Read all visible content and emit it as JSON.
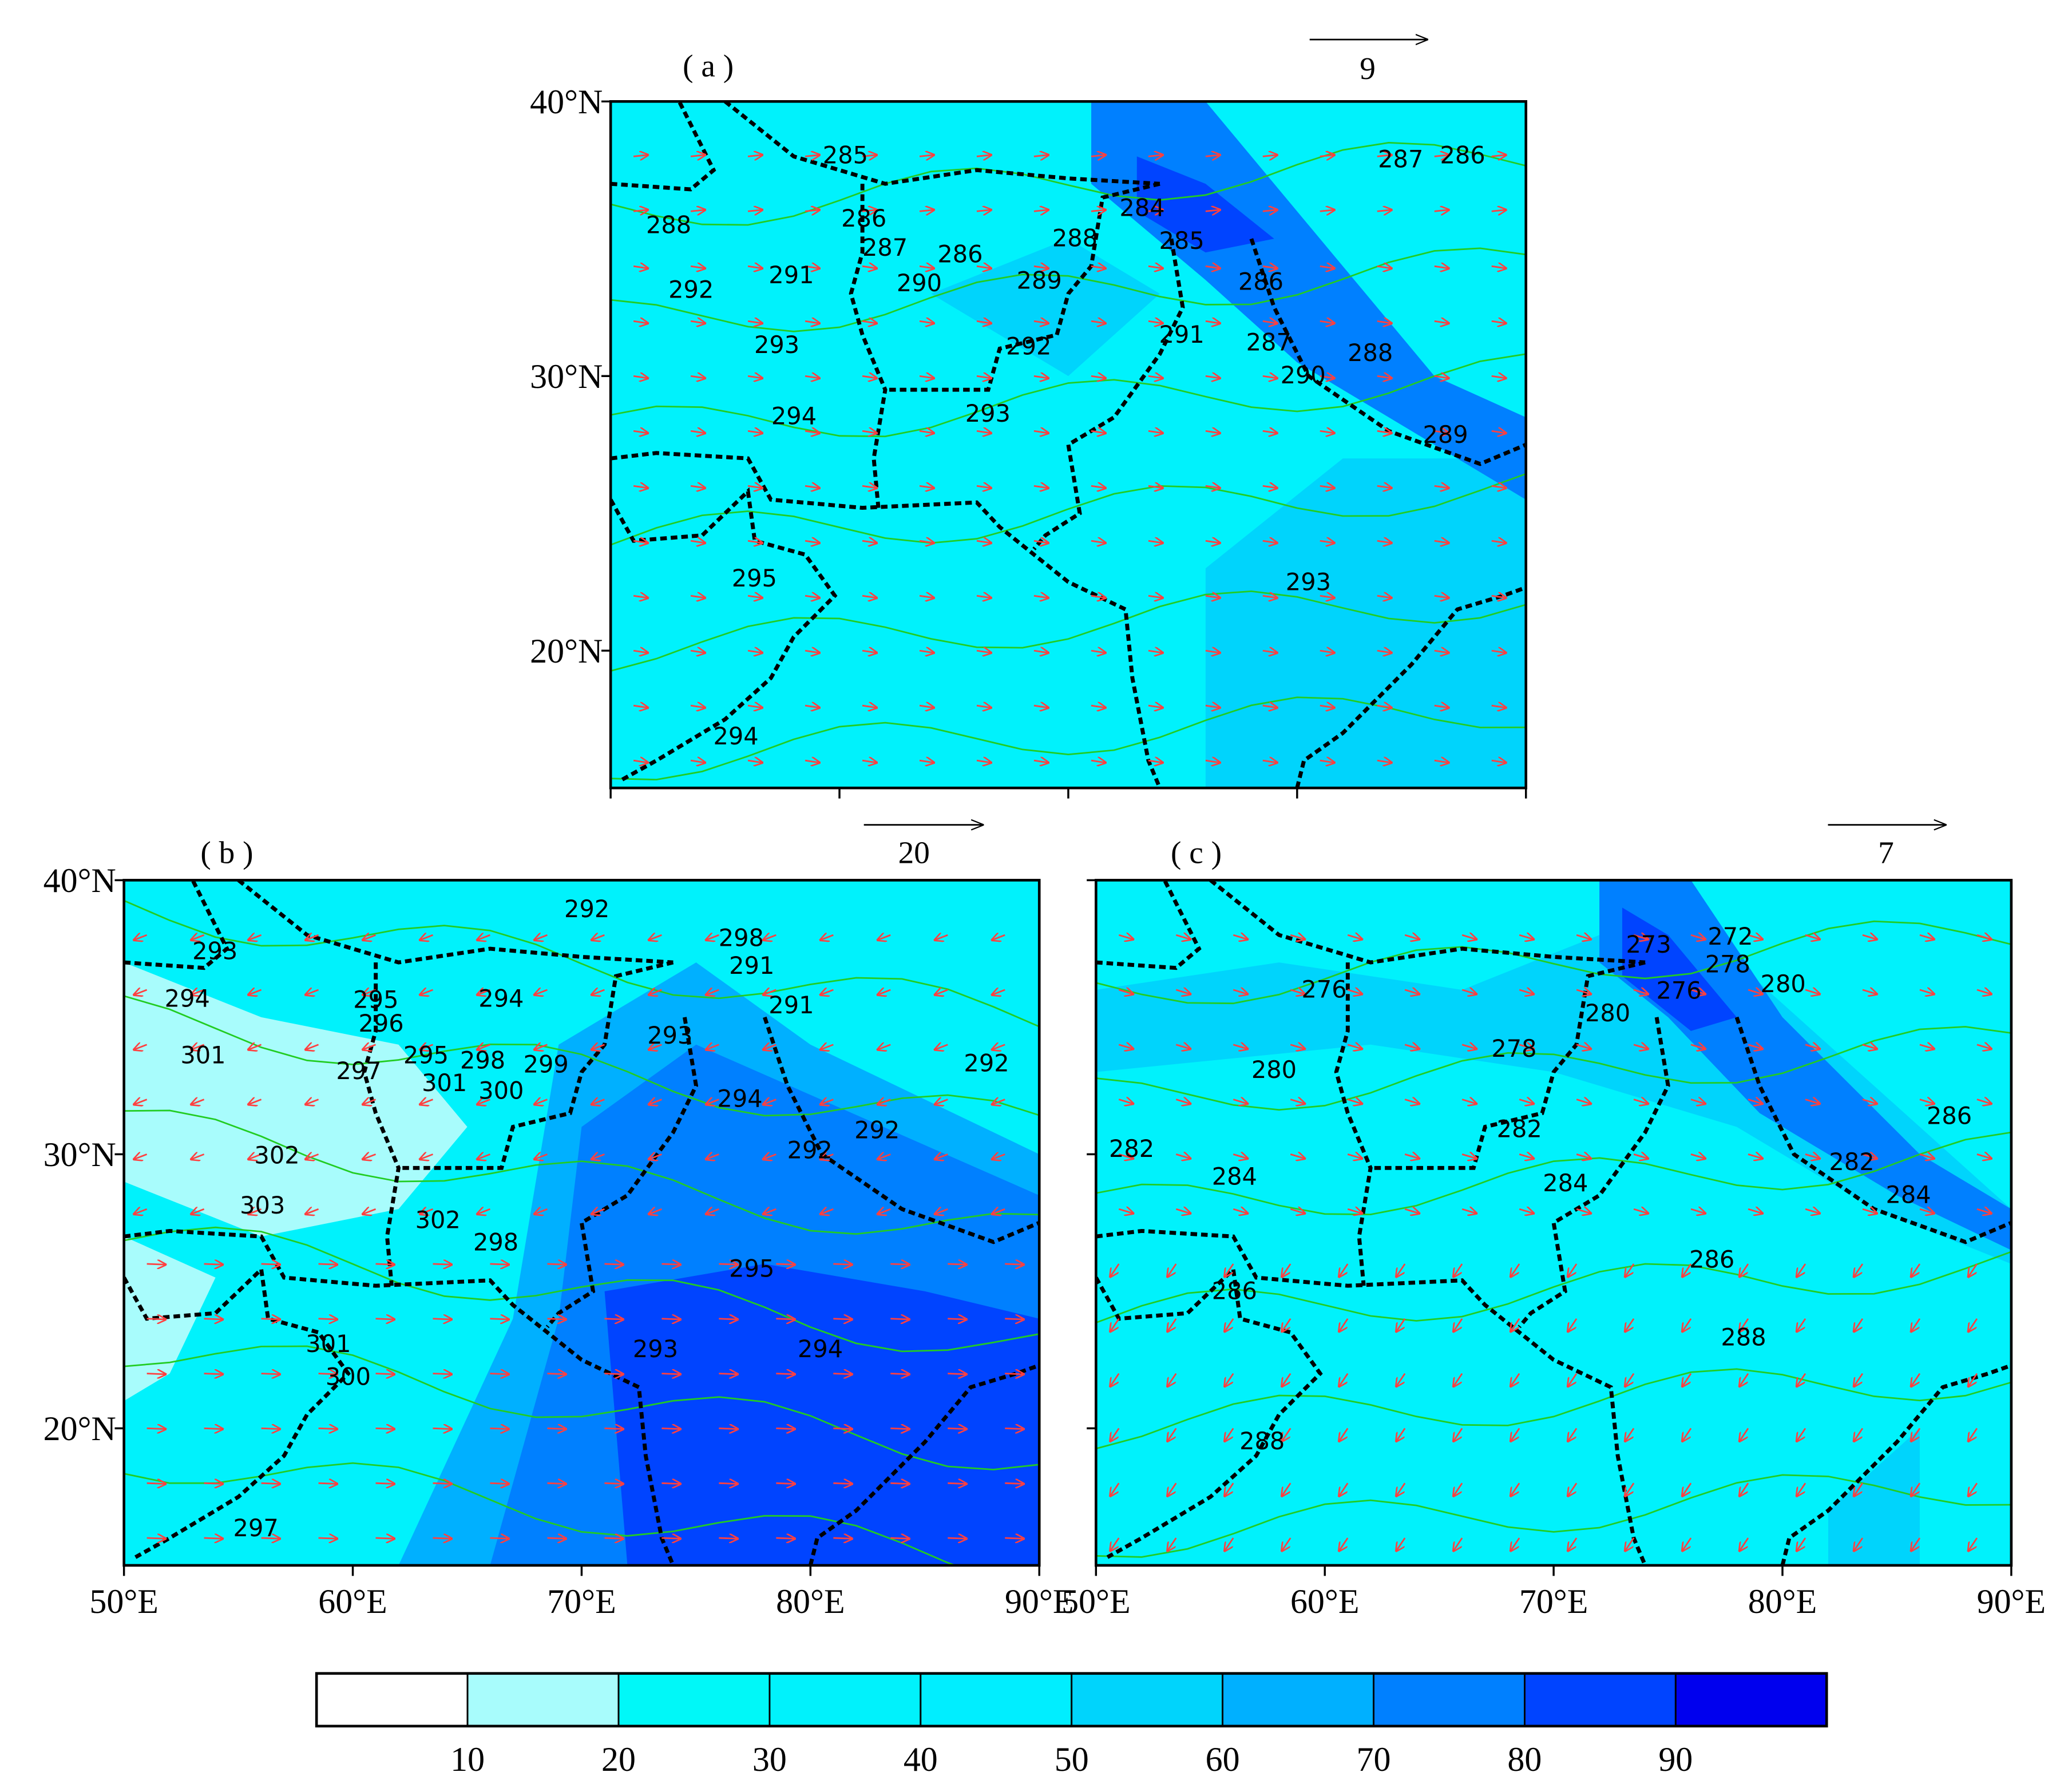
{
  "figure": {
    "panels": [
      {
        "label": "( a )",
        "reference_vector": 9,
        "xlim": [
          50,
          90
        ],
        "ylim": [
          15,
          40
        ],
        "xticks": [
          50,
          60,
          70,
          80,
          90
        ],
        "yticks": [
          {
            "value": 40,
            "label": "40°N"
          },
          {
            "value": 30,
            "label": "30°N"
          },
          {
            "value": 20,
            "label": "20°N"
          }
        ],
        "contour_labels": [
          285,
          287,
          286,
          284,
          288,
          286,
          287,
          286,
          288,
          285,
          291,
          290,
          289,
          286,
          292,
          291,
          287,
          288,
          293,
          292,
          290,
          294,
          293,
          289,
          295,
          293,
          294
        ]
      },
      {
        "label": "( b )",
        "reference_vector": 20,
        "xlim": [
          50,
          90
        ],
        "ylim": [
          15,
          40
        ],
        "xticks": [
          {
            "value": 50,
            "label": "50°E"
          },
          {
            "value": 60,
            "label": "60°E"
          },
          {
            "value": 70,
            "label": "70°E"
          },
          {
            "value": 80,
            "label": "80°E"
          },
          {
            "value": 90,
            "label": "90°E"
          }
        ],
        "yticks": [
          {
            "value": 40,
            "label": "40°N"
          },
          {
            "value": 30,
            "label": "30°N"
          },
          {
            "value": 20,
            "label": "20°N"
          }
        ],
        "contour_labels": [
          292,
          298,
          291,
          293,
          294,
          294,
          295,
          296,
          291,
          301,
          297,
          295,
          298,
          299,
          301,
          300,
          293,
          292,
          294,
          292,
          292,
          302,
          303,
          302,
          298,
          295,
          293,
          294,
          301,
          300,
          297
        ]
      },
      {
        "label": "( c )",
        "reference_vector": 7,
        "xlim": [
          50,
          90
        ],
        "ylim": [
          15,
          40
        ],
        "xticks": [
          {
            "value": 50,
            "label": "50°E"
          },
          {
            "value": 60,
            "label": "60°E"
          },
          {
            "value": 70,
            "label": "70°E"
          },
          {
            "value": 80,
            "label": "80°E"
          },
          {
            "value": 90,
            "label": "90°E"
          }
        ],
        "yticks": [
          40,
          30,
          20
        ],
        "contour_labels": [
          273,
          272,
          278,
          276,
          276,
          280,
          280,
          278,
          280,
          286,
          282,
          282,
          284,
          282,
          284,
          284,
          286,
          286,
          288,
          288
        ]
      }
    ],
    "colorbar": {
      "levels": [
        10,
        20,
        30,
        40,
        50,
        60,
        70,
        80,
        90
      ],
      "colors": [
        "#ffffff",
        "#a8fcfc",
        "#00f8f8",
        "#00f2fc",
        "#00eeff",
        "#00d4fc",
        "#00b0ff",
        "#0080ff",
        "#0044ff",
        "#0000ee"
      ]
    }
  }
}
